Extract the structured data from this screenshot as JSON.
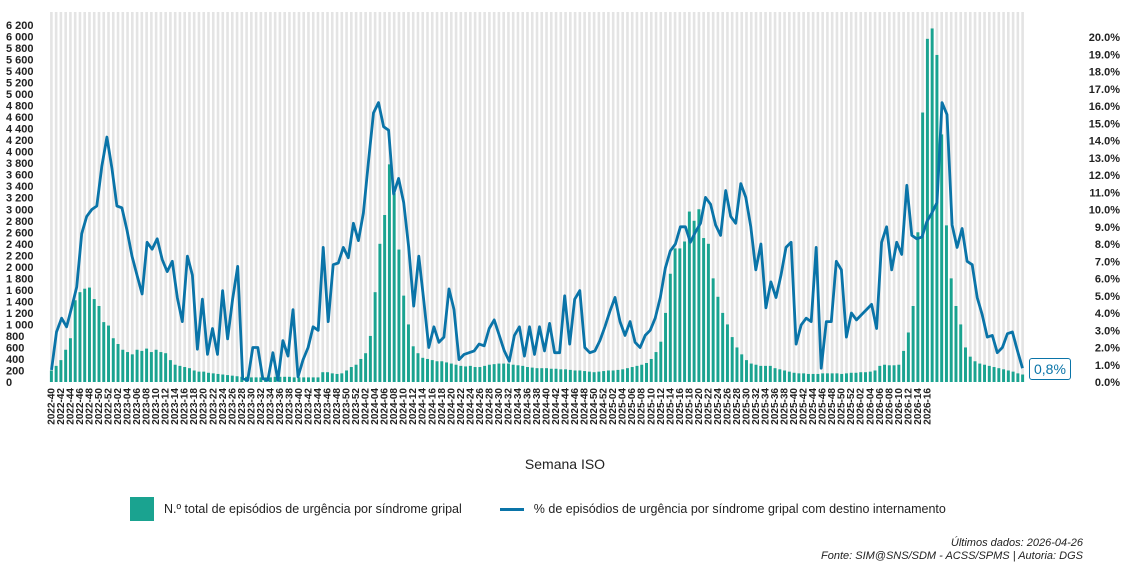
{
  "chart_data": {
    "type": "bar+line",
    "xlabel": "Semana ISO",
    "start_week": "2022-40",
    "x_tick_labels": [
      "2022-40",
      "2022-42",
      "2022-44",
      "2022-46",
      "2022-48",
      "2022-50",
      "2022-52",
      "2023-02",
      "2023-04",
      "2023-06",
      "2023-08",
      "2023-10",
      "2023-12",
      "2023-14",
      "2023-16",
      "2023-18",
      "2023-20",
      "2023-22",
      "2023-24",
      "2023-26",
      "2023-28",
      "2023-30",
      "2023-32",
      "2023-34",
      "2023-36",
      "2023-38",
      "2023-40",
      "2023-42",
      "2023-44",
      "2023-46",
      "2023-48",
      "2023-50",
      "2023-52",
      "2024-02",
      "2024-04",
      "2024-06",
      "2024-08",
      "2024-10",
      "2024-12",
      "2024-14",
      "2024-16",
      "2024-18",
      "2024-20",
      "2024-22",
      "2024-24",
      "2024-26",
      "2024-28",
      "2024-30",
      "2024-32",
      "2024-34",
      "2024-36",
      "2024-38",
      "2024-40",
      "2024-42",
      "2024-44",
      "2024-46",
      "2024-48",
      "2024-50",
      "2024-52",
      "2025-02",
      "2025-04",
      "2025-06",
      "2025-08",
      "2025-10",
      "2025-12",
      "2025-14",
      "2025-16",
      "2025-18",
      "2025-20",
      "2025-22",
      "2025-24",
      "2025-26",
      "2025-28",
      "2025-30",
      "2025-32",
      "2025-34",
      "2025-36",
      "2025-38",
      "2025-40",
      "2025-42",
      "2025-44",
      "2025-46",
      "2025-48",
      "2025-50",
      "2025-52",
      "2026-02",
      "2026-04",
      "2026-06",
      "2026-08",
      "2026-10",
      "2026-12",
      "2026-14",
      "2026-16"
    ],
    "y_left_ticks": [
      "0",
      "200",
      "400",
      "600",
      "800",
      "1 000",
      "1 200",
      "1 400",
      "1 600",
      "1 800",
      "2 000",
      "2 200",
      "2 400",
      "2 600",
      "2 800",
      "3 000",
      "3 200",
      "3 400",
      "3 600",
      "3 800",
      "4 000",
      "4 200",
      "4 400",
      "4 600",
      "4 800",
      "5 000",
      "5 200",
      "5 400",
      "5 600",
      "5 800",
      "6 000",
      "6 200"
    ],
    "y_right_ticks": [
      "0.0%",
      "1.0%",
      "2.0%",
      "3.0%",
      "4.0%",
      "5.0%",
      "6.0%",
      "7.0%",
      "8.0%",
      "9.0%",
      "10.0%",
      "11.0%",
      "12.0%",
      "13.0%",
      "14.0%",
      "15.0%",
      "16.0%",
      "17.0%",
      "18.0%",
      "19.0%",
      "20.0%"
    ],
    "ylim_left": [
      0,
      6200
    ],
    "ylim_right": [
      0,
      20
    ],
    "series": [
      {
        "name": "N.º total de episódios de urgência por síndrome gripal",
        "kind": "bar",
        "axis": "left",
        "color": "#1aa390",
        "values": [
          200,
          280,
          380,
          560,
          760,
          1420,
          1560,
          1620,
          1640,
          1440,
          1320,
          1040,
          980,
          760,
          660,
          560,
          520,
          480,
          560,
          540,
          580,
          520,
          560,
          520,
          500,
          380,
          300,
          280,
          260,
          240,
          200,
          180,
          180,
          160,
          150,
          140,
          130,
          120,
          110,
          100,
          90,
          90,
          80,
          80,
          80,
          80,
          80,
          90,
          90,
          90,
          90,
          80,
          80,
          80,
          80,
          80,
          80,
          170,
          170,
          150,
          140,
          150,
          200,
          260,
          300,
          400,
          500,
          800,
          1560,
          2400,
          2900,
          3780,
          3280,
          2300,
          1500,
          1000,
          620,
          500,
          420,
          400,
          380,
          360,
          360,
          340,
          320,
          300,
          280,
          270,
          280,
          260,
          260,
          280,
          300,
          310,
          320,
          320,
          320,
          300,
          290,
          280,
          260,
          250,
          240,
          240,
          240,
          230,
          230,
          220,
          220,
          210,
          200,
          200,
          190,
          180,
          170,
          180,
          190,
          200,
          200,
          210,
          220,
          240,
          260,
          280,
          300,
          330,
          400,
          520,
          700,
          1200,
          1880,
          2320,
          2320,
          2440,
          2960,
          2800,
          3000,
          2500,
          2400,
          1800,
          1480,
          1200,
          1000,
          780,
          600,
          480,
          380,
          320,
          300,
          280,
          280,
          280,
          240,
          220,
          200,
          180,
          160,
          150,
          150,
          140,
          140,
          140,
          150,
          150,
          150,
          150,
          140,
          150,
          160,
          160,
          170,
          170,
          180,
          200,
          280,
          300,
          290,
          290,
          300,
          540,
          860,
          1320,
          2600,
          4680,
          5960,
          6140,
          5680,
          4300,
          2720,
          1800,
          1320,
          1000,
          600,
          440,
          360,
          320,
          300,
          280,
          260,
          240,
          220,
          200,
          180,
          150,
          130
        ]
      },
      {
        "name": "% de episódios de urgência por síndrome gripal com destino internamento",
        "kind": "line",
        "axis": "right",
        "color": "#0a74a8",
        "values": [
          0.7,
          2.9,
          3.7,
          3.2,
          4.3,
          5.5,
          8.6,
          9.6,
          10.0,
          10.2,
          12.5,
          14.2,
          12.4,
          10.2,
          10.1,
          8.8,
          7.3,
          6.2,
          5.1,
          8.1,
          7.7,
          8.3,
          7.1,
          6.4,
          7.0,
          4.9,
          3.5,
          7.3,
          6.2,
          1.9,
          4.8,
          1.6,
          3.1,
          1.6,
          5.3,
          2.5,
          4.8,
          6.7,
          0.2,
          0.1,
          2.0,
          2.0,
          0.2,
          0.1,
          1.7,
          0.1,
          2.4,
          1.5,
          4.2,
          0.3,
          1.3,
          2.0,
          3.2,
          3.0,
          7.8,
          3.5,
          6.8,
          6.9,
          7.8,
          7.2,
          9.2,
          8.2,
          9.8,
          12.8,
          15.6,
          16.2,
          14.8,
          14.6,
          10.9,
          11.8,
          10.4,
          7.8,
          4.4,
          7.3,
          4.7,
          2.0,
          3.2,
          2.3,
          2.6,
          5.4,
          4.2,
          1.3,
          1.6,
          1.7,
          1.8,
          2.2,
          2.1,
          3.1,
          3.6,
          2.7,
          1.8,
          1.2,
          2.7,
          3.2,
          1.5,
          3.2,
          1.6,
          3.2,
          1.8,
          3.4,
          1.7,
          1.7,
          5.0,
          2.2,
          4.8,
          5.3,
          2.0,
          1.7,
          1.8,
          2.4,
          3.2,
          4.1,
          4.9,
          3.5,
          2.7,
          3.5,
          2.3,
          2.0,
          2.7,
          3.0,
          3.7,
          4.9,
          6.6,
          7.6,
          8.0,
          9.0,
          9.0,
          8.1,
          8.7,
          9.2,
          10.7,
          10.3,
          9.1,
          8.5,
          11.1,
          9.6,
          9.2,
          11.5,
          10.7,
          9.0,
          6.5,
          8.0,
          4.3,
          5.8,
          4.9,
          6.2,
          7.8,
          8.1,
          2.2,
          3.3,
          3.7,
          3.5,
          7.8,
          0.8,
          3.5,
          3.5,
          7.0,
          6.5,
          2.6,
          4.0,
          3.6,
          3.9,
          4.2,
          4.5,
          3.1,
          8.1,
          9.0,
          6.5,
          8.1,
          7.4,
          11.4,
          8.5,
          8.3,
          8.4,
          9.3,
          9.8,
          10.4,
          16.2,
          15.5,
          9.1,
          7.8,
          8.9,
          7.0,
          6.8,
          4.9,
          3.9,
          2.6,
          2.7,
          1.7,
          2.0,
          2.8,
          2.9,
          1.8,
          0.8
        ]
      }
    ],
    "last_value_label": "0,8%",
    "grid": "vertical",
    "legend_position": "bottom"
  },
  "legend": {
    "bar_label": "N.º total de episódios de urgência por síndrome gripal",
    "line_label": "% de episódios de urgência por síndrome gripal com destino internamento"
  },
  "footer": {
    "line1": "Últimos dados: 2026-04-26",
    "line2": "Fonte: SIM@SNS/SDM - ACSS/SPMS | Autoria: DGS"
  }
}
